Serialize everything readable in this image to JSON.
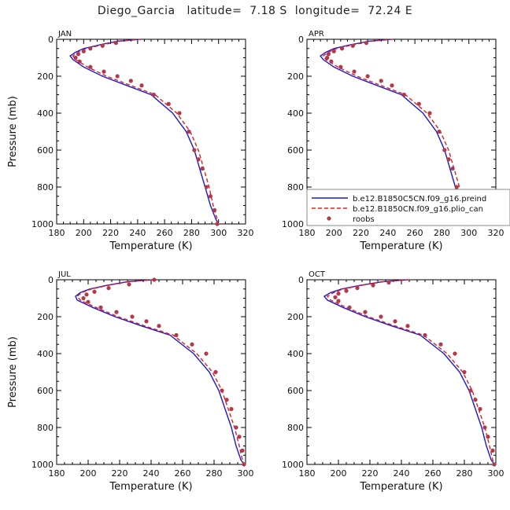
{
  "title": "Diego_Garcia   latitude=  7.18 S  longitude=  72.24 E",
  "legend": {
    "items": [
      {
        "label": "b.e12.B1850C5CN.f09_g16.preind",
        "color": "#1a1ad6",
        "style": "solid"
      },
      {
        "label": "b.e12.B1850CN.f09_g16.plio_can",
        "color": "#e02020",
        "style": "dashed"
      },
      {
        "label": "roobs",
        "color": "#b23a48",
        "style": "dots"
      }
    ]
  },
  "chart_data": [
    {
      "type": "line",
      "panel": "JAN",
      "xlabel": "Temperature (K)",
      "ylabel": "Pressure (mb)",
      "xlim": [
        180,
        320
      ],
      "xticks": [
        180,
        200,
        220,
        240,
        260,
        280,
        300,
        320
      ],
      "ylim": [
        1000,
        0
      ],
      "yticks": [
        0,
        200,
        400,
        600,
        800,
        1000
      ],
      "series": [
        {
          "name": "b.e12.B1850C5CN.f09_g16.preind",
          "x": [
            241,
            225,
            212,
            200,
            194,
            190,
            192,
            200,
            214,
            232,
            250,
            266,
            276,
            282,
            286,
            290,
            294,
            298,
            300
          ],
          "y": [
            0,
            10,
            30,
            50,
            70,
            90,
            110,
            150,
            200,
            250,
            300,
            400,
            500,
            600,
            700,
            800,
            900,
            975,
            1000
          ]
        },
        {
          "name": "b.e12.B1850CN.f09_g16.plio_can",
          "x": [
            243,
            227,
            214,
            202,
            196,
            192,
            194,
            203,
            217,
            235,
            253,
            269,
            279,
            285,
            289,
            293,
            296,
            299,
            300
          ],
          "y": [
            0,
            10,
            30,
            50,
            70,
            90,
            110,
            150,
            200,
            250,
            300,
            400,
            500,
            600,
            700,
            800,
            900,
            975,
            1000
          ]
        },
        {
          "name": "roobs",
          "x": [
            224,
            214,
            205,
            200,
            196,
            194,
            197,
            205,
            215,
            225,
            235,
            243,
            252,
            263,
            271,
            278,
            282,
            285,
            288,
            291,
            294,
            297,
            299
          ],
          "y": [
            20,
            35,
            50,
            65,
            80,
            100,
            120,
            150,
            175,
            200,
            225,
            250,
            300,
            350,
            400,
            500,
            600,
            650,
            700,
            800,
            850,
            925,
            1000
          ]
        }
      ]
    },
    {
      "type": "line",
      "panel": "APR",
      "xlabel": "Temperature (K)",
      "ylabel": "Pressure (mb)",
      "xlim": [
        180,
        320
      ],
      "xticks": [
        180,
        200,
        220,
        240,
        260,
        280,
        300,
        320
      ],
      "ylim": [
        1000,
        0
      ],
      "yticks": [
        0,
        200,
        400,
        600,
        800,
        1000
      ],
      "series": [
        {
          "name": "b.e12.B1850C5CN.f09_g16.preind",
          "x": [
            242,
            226,
            212,
            200,
            194,
            190,
            192,
            200,
            214,
            232,
            250,
            266,
            276,
            282,
            286,
            290,
            294,
            299,
            301
          ],
          "y": [
            0,
            10,
            30,
            50,
            70,
            90,
            110,
            150,
            200,
            250,
            300,
            400,
            500,
            600,
            700,
            800,
            900,
            975,
            1000
          ]
        },
        {
          "name": "b.e12.B1850CN.f09_g16.plio_can",
          "x": [
            244,
            228,
            214,
            202,
            196,
            192,
            194,
            203,
            217,
            235,
            253,
            269,
            279,
            285,
            289,
            293,
            296,
            300,
            301
          ],
          "y": [
            0,
            10,
            30,
            50,
            70,
            90,
            110,
            150,
            200,
            250,
            300,
            400,
            500,
            600,
            700,
            800,
            900,
            975,
            1000
          ]
        },
        {
          "name": "roobs",
          "x": [
            224,
            214,
            206,
            200,
            196,
            195,
            198,
            205,
            215,
            225,
            235,
            243,
            252,
            263,
            271,
            278,
            282,
            285,
            288,
            291,
            294,
            298,
            300
          ],
          "y": [
            20,
            35,
            50,
            65,
            80,
            100,
            120,
            150,
            175,
            200,
            225,
            250,
            300,
            350,
            400,
            500,
            600,
            650,
            700,
            800,
            850,
            925,
            1000
          ]
        }
      ]
    },
    {
      "type": "line",
      "panel": "JUL",
      "xlabel": "Temperature (K)",
      "ylabel": "Pressure (mb)",
      "xlim": [
        180,
        300
      ],
      "xticks": [
        180,
        200,
        220,
        240,
        260,
        280,
        300
      ],
      "ylim": [
        1000,
        0
      ],
      "yticks": [
        0,
        200,
        400,
        600,
        800,
        1000
      ],
      "series": [
        {
          "name": "b.e12.B1850C5CN.f09_g16.preind",
          "x": [
            241,
            225,
            212,
            201,
            195,
            192,
            193,
            203,
            217,
            234,
            252,
            267,
            277,
            283,
            287,
            291,
            294,
            297,
            299
          ],
          "y": [
            0,
            10,
            30,
            50,
            70,
            90,
            110,
            150,
            200,
            250,
            300,
            400,
            500,
            600,
            700,
            800,
            900,
            975,
            1000
          ]
        },
        {
          "name": "b.e12.B1850CN.f09_g16.plio_can",
          "x": [
            242,
            226,
            213,
            202,
            196,
            193,
            195,
            205,
            219,
            236,
            254,
            269,
            279,
            285,
            289,
            293,
            296,
            298,
            299
          ],
          "y": [
            0,
            10,
            30,
            50,
            70,
            90,
            110,
            150,
            200,
            250,
            300,
            400,
            500,
            600,
            700,
            800,
            900,
            975,
            1000
          ]
        },
        {
          "name": "roobs",
          "x": [
            242,
            226,
            213,
            204,
            199,
            197,
            200,
            208,
            218,
            228,
            237,
            245,
            256,
            266,
            275,
            281,
            285,
            288,
            291,
            294,
            296,
            298,
            299
          ],
          "y": [
            0,
            25,
            45,
            65,
            80,
            100,
            120,
            150,
            175,
            200,
            225,
            250,
            300,
            350,
            400,
            500,
            600,
            650,
            700,
            800,
            850,
            925,
            1000
          ]
        }
      ]
    },
    {
      "type": "line",
      "panel": "OCT",
      "xlabel": "Temperature (K)",
      "ylabel": "Pressure (mb)",
      "xlim": [
        180,
        300
      ],
      "xticks": [
        180,
        200,
        220,
        240,
        260,
        280,
        300
      ],
      "ylim": [
        1000,
        0
      ],
      "yticks": [
        0,
        200,
        400,
        600,
        800,
        1000
      ],
      "series": [
        {
          "name": "b.e12.B1850C5CN.f09_g16.preind",
          "x": [
            244,
            228,
            214,
            202,
            195,
            191,
            193,
            203,
            217,
            234,
            252,
            267,
            277,
            283,
            287,
            291,
            294,
            297,
            299
          ],
          "y": [
            0,
            10,
            30,
            50,
            70,
            90,
            110,
            150,
            200,
            250,
            300,
            400,
            500,
            600,
            700,
            800,
            900,
            975,
            1000
          ]
        },
        {
          "name": "b.e12.B1850CN.f09_g16.plio_can",
          "x": [
            245,
            229,
            215,
            203,
            197,
            193,
            195,
            205,
            219,
            236,
            254,
            269,
            279,
            285,
            289,
            293,
            296,
            298,
            299
          ],
          "y": [
            0,
            10,
            30,
            50,
            70,
            90,
            110,
            150,
            200,
            250,
            300,
            400,
            500,
            600,
            700,
            800,
            900,
            975,
            1000
          ]
        },
        {
          "name": "roobs",
          "x": [
            232,
            222,
            212,
            205,
            200,
            198,
            200,
            207,
            217,
            227,
            236,
            244,
            255,
            265,
            274,
            280,
            284,
            287,
            290,
            293,
            295,
            298,
            299
          ],
          "y": [
            15,
            30,
            45,
            60,
            75,
            95,
            115,
            150,
            175,
            200,
            225,
            250,
            300,
            350,
            400,
            500,
            600,
            650,
            700,
            800,
            850,
            925,
            1000
          ]
        }
      ]
    }
  ]
}
